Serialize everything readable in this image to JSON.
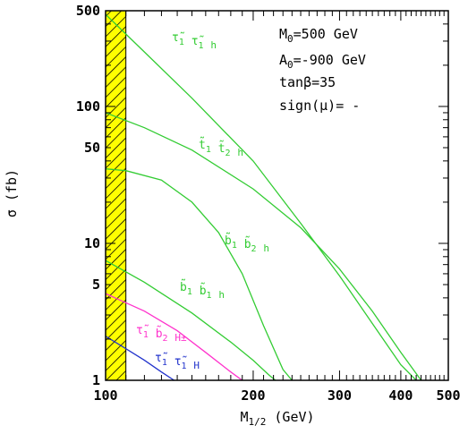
{
  "chart_data": {
    "type": "line",
    "title": "",
    "xlabel": "M1/2 (GeV)",
    "ylabel": "σ (fb)",
    "x_scale": "log",
    "y_scale": "log",
    "xlim": [
      100,
      500
    ],
    "ylim": [
      1,
      500
    ],
    "x_ticks": [
      {
        "value": 100,
        "label": "100"
      },
      {
        "value": 200,
        "label": "200"
      },
      {
        "value": 300,
        "label": "300"
      },
      {
        "value": 400,
        "label": "400"
      },
      {
        "value": 500,
        "label": "500"
      }
    ],
    "y_ticks": [
      {
        "value": 1,
        "label": "1"
      },
      {
        "value": 5,
        "label": "5"
      },
      {
        "value": 10,
        "label": "10"
      },
      {
        "value": 50,
        "label": "50"
      },
      {
        "value": 100,
        "label": "100"
      },
      {
        "value": 500,
        "label": "500"
      }
    ],
    "grid": false,
    "excluded_region": {
      "x": [
        100,
        110
      ],
      "color": "#ffff00",
      "hatch": true
    },
    "annotations": [
      "M0=500 GeV",
      "A0=-900 GeV",
      "tanβ=35",
      "sign(μ)= -"
    ],
    "series": [
      {
        "name": "τ̃1 τ̃1 h",
        "color": "#33cc33",
        "x": [
          100,
          120,
          150,
          200,
          250,
          300,
          350,
          400,
          430
        ],
        "y": [
          470,
          250,
          115,
          40,
          14,
          5.8,
          2.6,
          1.3,
          1.0
        ]
      },
      {
        "name": "t̃1 t̃2 h",
        "color": "#33cc33",
        "x": [
          100,
          120,
          150,
          200,
          250,
          300,
          350,
          400,
          440
        ],
        "y": [
          90,
          70,
          48,
          25,
          13,
          6.5,
          3.2,
          1.6,
          1.0
        ]
      },
      {
        "name": "b̃1 b̃2 h",
        "color": "#33cc33",
        "x": [
          100,
          110,
          130,
          150,
          170,
          190,
          210,
          230,
          240
        ],
        "y": [
          35,
          34,
          29,
          20,
          12,
          6,
          2.5,
          1.2,
          1.0
        ]
      },
      {
        "name": "b̃1 b̃1 h",
        "color": "#33cc33",
        "x": [
          100,
          120,
          150,
          180,
          200,
          215,
          222
        ],
        "y": [
          7.5,
          5.2,
          3.1,
          1.9,
          1.4,
          1.1,
          1.0
        ]
      },
      {
        "name": "τ̃1 b̃2 H±",
        "color": "#ff33cc",
        "x": [
          100,
          120,
          140,
          160,
          180,
          190
        ],
        "y": [
          4.3,
          3.2,
          2.3,
          1.6,
          1.15,
          1.0
        ]
      },
      {
        "name": "τ̃1 τ̃1 H",
        "color": "#2233cc",
        "x": [
          100,
          110,
          120,
          130,
          138
        ],
        "y": [
          2.1,
          1.7,
          1.4,
          1.15,
          1.0
        ]
      }
    ]
  }
}
